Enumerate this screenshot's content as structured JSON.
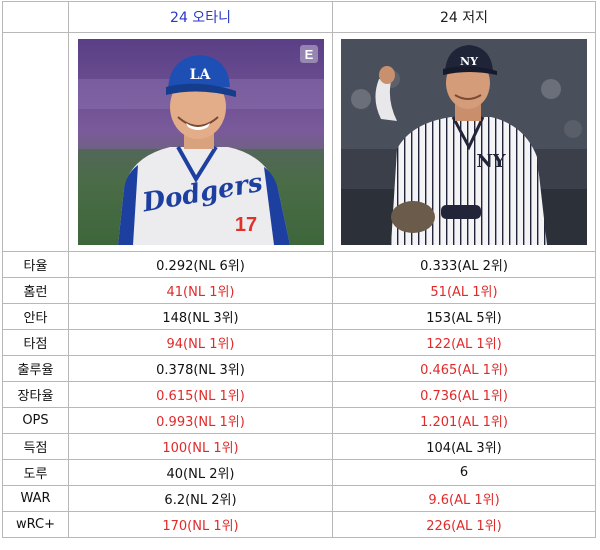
{
  "header": {
    "player1": "24 오타니",
    "player2": "24 저지"
  },
  "photos": {
    "player1": {
      "jersey_wordmark": "Dodgers",
      "jersey_number": "17",
      "cap_logo": "LA",
      "watermark": "E"
    },
    "player2": {
      "cap_logo": "NY",
      "jersey_logo": "NY"
    }
  },
  "colors": {
    "header_player1": "#2a38c8",
    "league_leader": "#e02a2a",
    "border": "#b8b8b8"
  },
  "stats": [
    {
      "label": "타율",
      "p1": "0.292(NL 6위)",
      "p1_red": false,
      "p2": "0.333(AL 2위)",
      "p2_red": false
    },
    {
      "label": "홈런",
      "p1": "41(NL 1위)",
      "p1_red": true,
      "p2": "51(AL 1위)",
      "p2_red": true
    },
    {
      "label": "안타",
      "p1": "148(NL 3위)",
      "p1_red": false,
      "p2": "153(AL 5위)",
      "p2_red": false
    },
    {
      "label": "타점",
      "p1": "94(NL 1위)",
      "p1_red": true,
      "p2": "122(AL 1위)",
      "p2_red": true
    },
    {
      "label": "출루율",
      "p1": "0.378(NL 3위)",
      "p1_red": false,
      "p2": "0.465(AL 1위)",
      "p2_red": true
    },
    {
      "label": "장타율",
      "p1": "0.615(NL 1위)",
      "p1_red": true,
      "p2": "0.736(AL 1위)",
      "p2_red": true
    },
    {
      "label": "OPS",
      "p1": "0.993(NL 1위)",
      "p1_red": true,
      "p2": "1.201(AL 1위)",
      "p2_red": true
    },
    {
      "label": "득점",
      "p1": "100(NL 1위)",
      "p1_red": true,
      "p2": "104(AL 3위)",
      "p2_red": false
    },
    {
      "label": "도루",
      "p1": "40(NL 2위)",
      "p1_red": false,
      "p2": "6",
      "p2_red": false
    },
    {
      "label": "WAR",
      "p1": "6.2(NL 2위)",
      "p1_red": false,
      "p2": "9.6(AL 1위)",
      "p2_red": true
    },
    {
      "label": "wRC+",
      "p1": "170(NL 1위)",
      "p1_red": true,
      "p2": "226(AL 1위)",
      "p2_red": true
    }
  ]
}
